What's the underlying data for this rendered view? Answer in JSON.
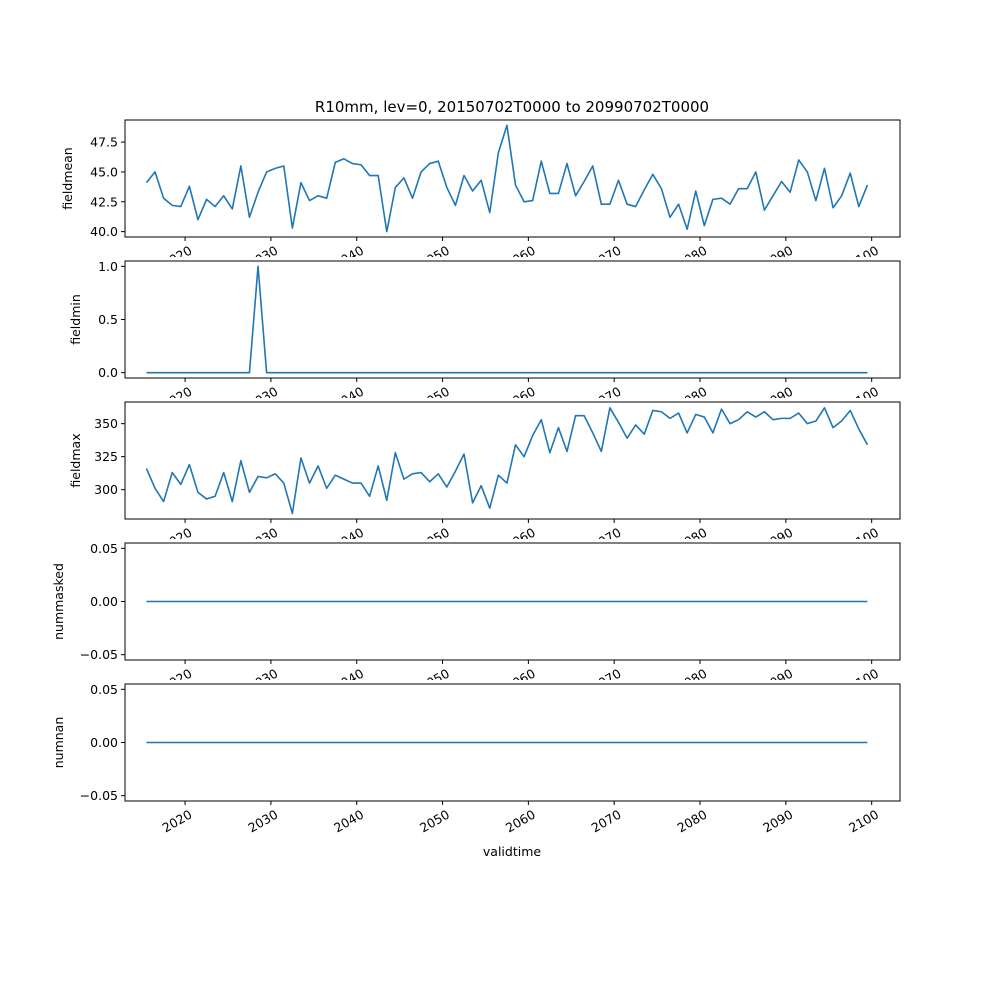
{
  "chart_data": {
    "type": "line",
    "title": "R10mm, lev=0, 20150702T0000 to 20990702T0000",
    "xlabel": "validtime",
    "x_start_year": 2015,
    "x_end_year": 2099,
    "xlim": [
      2013.0,
      2103.3
    ],
    "x_ticks": [
      2020,
      2030,
      2040,
      2050,
      2060,
      2070,
      2080,
      2090,
      2100
    ],
    "x_tick_labels": [
      "2020",
      "2030",
      "2040",
      "2050",
      "2060",
      "2070",
      "2080",
      "2090",
      "2100"
    ],
    "panels": [
      {
        "ylabel": "fieldmean",
        "ylim": [
          39.55,
          49.35
        ],
        "yticks": [
          40.0,
          42.5,
          45.0,
          47.5
        ],
        "ytick_labels": [
          "40.0",
          "42.5",
          "45.0",
          "47.5"
        ],
        "values": [
          44.1,
          45.0,
          42.8,
          42.2,
          42.1,
          43.8,
          41.0,
          42.7,
          42.1,
          43.0,
          41.9,
          45.5,
          41.2,
          43.3,
          45.0,
          45.3,
          45.5,
          40.3,
          44.1,
          42.6,
          43.0,
          42.8,
          45.8,
          46.1,
          45.7,
          45.6,
          44.7,
          44.7,
          40.0,
          43.7,
          44.5,
          42.8,
          45.0,
          45.7,
          45.9,
          43.7,
          42.2,
          44.7,
          43.4,
          44.3,
          41.6,
          46.6,
          48.9,
          43.9,
          42.5,
          42.6,
          45.9,
          43.2,
          43.2,
          45.7,
          43.0,
          44.2,
          45.5,
          42.3,
          42.3,
          44.3,
          42.3,
          42.1,
          43.5,
          44.8,
          43.6,
          41.2,
          42.3,
          40.2,
          43.4,
          40.5,
          42.7,
          42.8,
          42.3,
          43.6,
          43.6,
          45.0,
          41.8,
          43.0,
          44.2,
          43.3,
          46.0,
          45.0,
          42.6,
          45.3,
          42.0,
          43.0,
          44.9,
          42.1,
          43.9
        ]
      },
      {
        "ylabel": "fieldmin",
        "ylim": [
          -0.05,
          1.05
        ],
        "yticks": [
          0.0,
          0.5,
          1.0
        ],
        "ytick_labels": [
          "0.0",
          "0.5",
          "1.0"
        ],
        "values": [
          0,
          0,
          0,
          0,
          0,
          0,
          0,
          0,
          0,
          0,
          0,
          0,
          0,
          1,
          0,
          0,
          0,
          0,
          0,
          0,
          0,
          0,
          0,
          0,
          0,
          0,
          0,
          0,
          0,
          0,
          0,
          0,
          0,
          0,
          0,
          0,
          0,
          0,
          0,
          0,
          0,
          0,
          0,
          0,
          0,
          0,
          0,
          0,
          0,
          0,
          0,
          0,
          0,
          0,
          0,
          0,
          0,
          0,
          0,
          0,
          0,
          0,
          0,
          0,
          0,
          0,
          0,
          0,
          0,
          0,
          0,
          0,
          0,
          0,
          0,
          0,
          0,
          0,
          0,
          0,
          0,
          0,
          0,
          0,
          0
        ]
      },
      {
        "ylabel": "fieldmax",
        "ylim": [
          277.8,
          366.4
        ],
        "yticks": [
          300,
          325,
          350
        ],
        "ytick_labels": [
          "300",
          "325",
          "350"
        ],
        "values": [
          316,
          301,
          291,
          313,
          304,
          319,
          298,
          293,
          295,
          313,
          291,
          322,
          298,
          310,
          309,
          312,
          305,
          282,
          324,
          305,
          318,
          301,
          311,
          308,
          305,
          305,
          295,
          318,
          292,
          328,
          308,
          312,
          313,
          306,
          312,
          302,
          314,
          327,
          290,
          303,
          286,
          311,
          305,
          334,
          325,
          341,
          353,
          328,
          347,
          329,
          356,
          356,
          343,
          329,
          362,
          351,
          339,
          349,
          342,
          360,
          359,
          354,
          358,
          343,
          357,
          355,
          343,
          361,
          350,
          353,
          359,
          355,
          359,
          353,
          354,
          354,
          358,
          350,
          352,
          362,
          347,
          352,
          360,
          346,
          334
        ]
      },
      {
        "ylabel": "nummasked",
        "ylim": [
          -0.055,
          0.055
        ],
        "yticks": [
          -0.05,
          0.0,
          0.05
        ],
        "ytick_labels": [
          "−0.05",
          "0.00",
          "0.05"
        ],
        "values": [
          0,
          0,
          0,
          0,
          0,
          0,
          0,
          0,
          0,
          0,
          0,
          0,
          0,
          0,
          0,
          0,
          0,
          0,
          0,
          0,
          0,
          0,
          0,
          0,
          0,
          0,
          0,
          0,
          0,
          0,
          0,
          0,
          0,
          0,
          0,
          0,
          0,
          0,
          0,
          0,
          0,
          0,
          0,
          0,
          0,
          0,
          0,
          0,
          0,
          0,
          0,
          0,
          0,
          0,
          0,
          0,
          0,
          0,
          0,
          0,
          0,
          0,
          0,
          0,
          0,
          0,
          0,
          0,
          0,
          0,
          0,
          0,
          0,
          0,
          0,
          0,
          0,
          0,
          0,
          0,
          0,
          0,
          0,
          0,
          0
        ]
      },
      {
        "ylabel": "numnan",
        "ylim": [
          -0.055,
          0.055
        ],
        "yticks": [
          -0.05,
          0.0,
          0.05
        ],
        "ytick_labels": [
          "−0.05",
          "0.00",
          "0.05"
        ],
        "values": [
          0,
          0,
          0,
          0,
          0,
          0,
          0,
          0,
          0,
          0,
          0,
          0,
          0,
          0,
          0,
          0,
          0,
          0,
          0,
          0,
          0,
          0,
          0,
          0,
          0,
          0,
          0,
          0,
          0,
          0,
          0,
          0,
          0,
          0,
          0,
          0,
          0,
          0,
          0,
          0,
          0,
          0,
          0,
          0,
          0,
          0,
          0,
          0,
          0,
          0,
          0,
          0,
          0,
          0,
          0,
          0,
          0,
          0,
          0,
          0,
          0,
          0,
          0,
          0,
          0,
          0,
          0,
          0,
          0,
          0,
          0,
          0,
          0,
          0,
          0,
          0,
          0,
          0,
          0,
          0,
          0,
          0,
          0,
          0,
          0
        ]
      }
    ]
  }
}
